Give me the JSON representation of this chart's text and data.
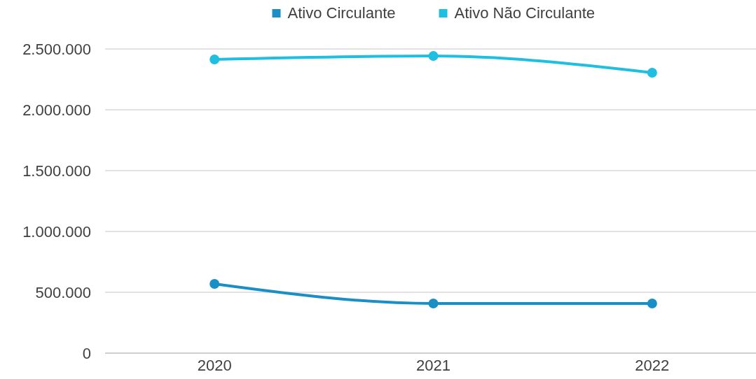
{
  "chart_data": {
    "type": "line",
    "categories": [
      "2020",
      "2021",
      "2022"
    ],
    "series": [
      {
        "name": "Ativo Circulante",
        "color": "#1a8fc6",
        "values": [
          569000,
          408000,
          408000
        ]
      },
      {
        "name": "Ativo Não Circulante",
        "color": "#1ebfe0",
        "values": [
          2414000,
          2442000,
          2305000
        ]
      }
    ],
    "ylim": [
      0,
      2500000
    ],
    "yticks": [
      {
        "value": 0,
        "label": "0"
      },
      {
        "value": 500000,
        "label": "500.000"
      },
      {
        "value": 1000000,
        "label": "1.000.000"
      },
      {
        "value": 1500000,
        "label": "1.500.000"
      },
      {
        "value": 2000000,
        "label": "2.000.000"
      },
      {
        "value": 2500000,
        "label": "2.500.000"
      }
    ],
    "grid": "y",
    "legend": "top",
    "marker": "circle",
    "line_style": "solid"
  }
}
